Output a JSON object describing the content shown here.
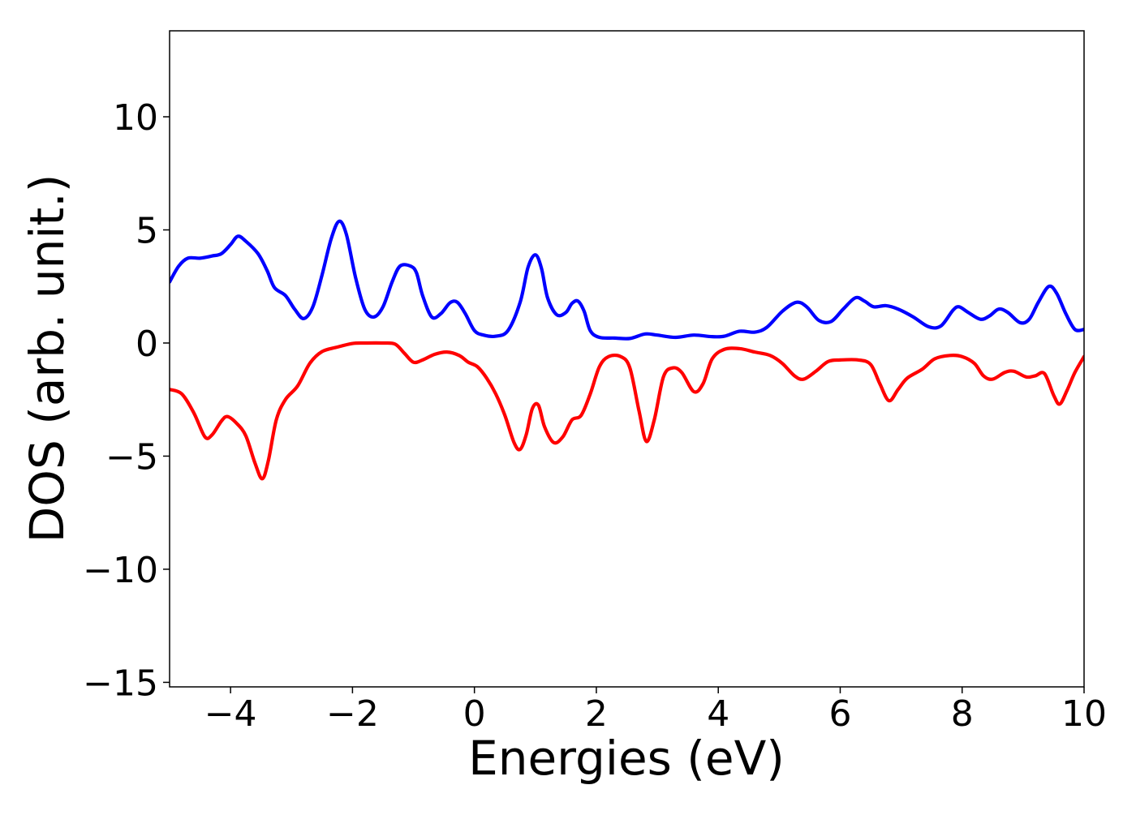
{
  "chart_data": {
    "type": "line",
    "title": "",
    "xlabel": "Energies (eV)",
    "ylabel": "DOS (arb. unit.)",
    "xlim": [
      -5,
      10
    ],
    "ylim": [
      -15.2,
      13.8
    ],
    "xticks": [
      -4,
      -2,
      0,
      2,
      4,
      6,
      8,
      10
    ],
    "xtick_labels": [
      "−4",
      "−2",
      "0",
      "2",
      "4",
      "6",
      "8",
      "10"
    ],
    "yticks": [
      10,
      5,
      0,
      -5,
      -10,
      -15
    ],
    "ytick_labels": [
      "10",
      "5",
      "0",
      "−5",
      "−10",
      "−15"
    ],
    "grid": false,
    "legend": "none",
    "series": [
      {
        "color": "#0000ff",
        "points": [
          [
            -5.0,
            2.7
          ],
          [
            -4.85,
            3.4
          ],
          [
            -4.7,
            3.75
          ],
          [
            -4.5,
            3.75
          ],
          [
            -4.3,
            3.85
          ],
          [
            -4.15,
            3.95
          ],
          [
            -4.0,
            4.35
          ],
          [
            -3.88,
            4.72
          ],
          [
            -3.75,
            4.5
          ],
          [
            -3.55,
            3.95
          ],
          [
            -3.4,
            3.2
          ],
          [
            -3.28,
            2.45
          ],
          [
            -3.1,
            2.1
          ],
          [
            -2.95,
            1.5
          ],
          [
            -2.8,
            1.08
          ],
          [
            -2.65,
            1.6
          ],
          [
            -2.5,
            3.0
          ],
          [
            -2.35,
            4.6
          ],
          [
            -2.22,
            5.38
          ],
          [
            -2.1,
            4.8
          ],
          [
            -1.95,
            2.9
          ],
          [
            -1.8,
            1.5
          ],
          [
            -1.65,
            1.15
          ],
          [
            -1.5,
            1.6
          ],
          [
            -1.35,
            2.7
          ],
          [
            -1.22,
            3.4
          ],
          [
            -1.05,
            3.4
          ],
          [
            -0.95,
            3.1
          ],
          [
            -0.85,
            2.1
          ],
          [
            -0.7,
            1.15
          ],
          [
            -0.55,
            1.3
          ],
          [
            -0.4,
            1.78
          ],
          [
            -0.28,
            1.8
          ],
          [
            -0.15,
            1.3
          ],
          [
            0.0,
            0.55
          ],
          [
            0.15,
            0.35
          ],
          [
            0.35,
            0.3
          ],
          [
            0.55,
            0.55
          ],
          [
            0.75,
            1.8
          ],
          [
            0.88,
            3.35
          ],
          [
            1.0,
            3.9
          ],
          [
            1.1,
            3.3
          ],
          [
            1.2,
            2.0
          ],
          [
            1.35,
            1.25
          ],
          [
            1.5,
            1.35
          ],
          [
            1.6,
            1.75
          ],
          [
            1.7,
            1.85
          ],
          [
            1.8,
            1.4
          ],
          [
            1.9,
            0.55
          ],
          [
            2.05,
            0.25
          ],
          [
            2.3,
            0.22
          ],
          [
            2.55,
            0.2
          ],
          [
            2.8,
            0.4
          ],
          [
            3.0,
            0.35
          ],
          [
            3.3,
            0.25
          ],
          [
            3.6,
            0.35
          ],
          [
            3.9,
            0.28
          ],
          [
            4.1,
            0.3
          ],
          [
            4.35,
            0.52
          ],
          [
            4.6,
            0.48
          ],
          [
            4.8,
            0.7
          ],
          [
            5.05,
            1.4
          ],
          [
            5.28,
            1.8
          ],
          [
            5.45,
            1.6
          ],
          [
            5.65,
            1.0
          ],
          [
            5.85,
            0.95
          ],
          [
            6.05,
            1.5
          ],
          [
            6.25,
            2.0
          ],
          [
            6.4,
            1.85
          ],
          [
            6.55,
            1.6
          ],
          [
            6.75,
            1.65
          ],
          [
            6.95,
            1.5
          ],
          [
            7.2,
            1.15
          ],
          [
            7.45,
            0.72
          ],
          [
            7.65,
            0.75
          ],
          [
            7.85,
            1.45
          ],
          [
            7.95,
            1.6
          ],
          [
            8.1,
            1.35
          ],
          [
            8.3,
            1.05
          ],
          [
            8.45,
            1.2
          ],
          [
            8.6,
            1.5
          ],
          [
            8.75,
            1.35
          ],
          [
            8.95,
            0.9
          ],
          [
            9.1,
            1.05
          ],
          [
            9.25,
            1.8
          ],
          [
            9.42,
            2.5
          ],
          [
            9.55,
            2.2
          ],
          [
            9.7,
            1.3
          ],
          [
            9.85,
            0.6
          ],
          [
            10.0,
            0.6
          ]
        ]
      },
      {
        "color": "#ff0000",
        "points": [
          [
            -5.0,
            -2.05
          ],
          [
            -4.8,
            -2.25
          ],
          [
            -4.6,
            -3.1
          ],
          [
            -4.42,
            -4.15
          ],
          [
            -4.3,
            -4.05
          ],
          [
            -4.15,
            -3.45
          ],
          [
            -4.05,
            -3.25
          ],
          [
            -3.9,
            -3.55
          ],
          [
            -3.75,
            -4.1
          ],
          [
            -3.6,
            -5.3
          ],
          [
            -3.48,
            -6.0
          ],
          [
            -3.38,
            -5.2
          ],
          [
            -3.25,
            -3.4
          ],
          [
            -3.1,
            -2.5
          ],
          [
            -2.9,
            -1.9
          ],
          [
            -2.7,
            -0.9
          ],
          [
            -2.5,
            -0.38
          ],
          [
            -2.25,
            -0.18
          ],
          [
            -2.0,
            -0.02
          ],
          [
            -1.8,
            0.0
          ],
          [
            -1.5,
            0.0
          ],
          [
            -1.3,
            -0.05
          ],
          [
            -1.15,
            -0.45
          ],
          [
            -1.0,
            -0.85
          ],
          [
            -0.85,
            -0.75
          ],
          [
            -0.65,
            -0.5
          ],
          [
            -0.45,
            -0.4
          ],
          [
            -0.25,
            -0.55
          ],
          [
            -0.1,
            -0.85
          ],
          [
            0.05,
            -1.05
          ],
          [
            0.2,
            -1.55
          ],
          [
            0.35,
            -2.25
          ],
          [
            0.5,
            -3.2
          ],
          [
            0.65,
            -4.4
          ],
          [
            0.75,
            -4.7
          ],
          [
            0.85,
            -4.05
          ],
          [
            0.95,
            -2.9
          ],
          [
            1.05,
            -2.75
          ],
          [
            1.15,
            -3.7
          ],
          [
            1.3,
            -4.4
          ],
          [
            1.45,
            -4.15
          ],
          [
            1.6,
            -3.4
          ],
          [
            1.75,
            -3.2
          ],
          [
            1.9,
            -2.25
          ],
          [
            2.05,
            -1.05
          ],
          [
            2.2,
            -0.6
          ],
          [
            2.4,
            -0.6
          ],
          [
            2.55,
            -1.1
          ],
          [
            2.7,
            -3.0
          ],
          [
            2.82,
            -4.35
          ],
          [
            2.95,
            -3.4
          ],
          [
            3.1,
            -1.5
          ],
          [
            3.25,
            -1.1
          ],
          [
            3.4,
            -1.3
          ],
          [
            3.6,
            -2.15
          ],
          [
            3.75,
            -1.8
          ],
          [
            3.9,
            -0.7
          ],
          [
            4.1,
            -0.28
          ],
          [
            4.35,
            -0.25
          ],
          [
            4.6,
            -0.4
          ],
          [
            4.85,
            -0.55
          ],
          [
            5.05,
            -0.9
          ],
          [
            5.25,
            -1.45
          ],
          [
            5.4,
            -1.6
          ],
          [
            5.6,
            -1.25
          ],
          [
            5.8,
            -0.82
          ],
          [
            6.0,
            -0.75
          ],
          [
            6.3,
            -0.75
          ],
          [
            6.5,
            -0.95
          ],
          [
            6.65,
            -1.8
          ],
          [
            6.8,
            -2.55
          ],
          [
            6.95,
            -2.05
          ],
          [
            7.1,
            -1.55
          ],
          [
            7.35,
            -1.15
          ],
          [
            7.55,
            -0.7
          ],
          [
            7.8,
            -0.55
          ],
          [
            8.0,
            -0.6
          ],
          [
            8.2,
            -0.9
          ],
          [
            8.35,
            -1.45
          ],
          [
            8.5,
            -1.6
          ],
          [
            8.7,
            -1.3
          ],
          [
            8.85,
            -1.25
          ],
          [
            9.05,
            -1.5
          ],
          [
            9.2,
            -1.45
          ],
          [
            9.35,
            -1.35
          ],
          [
            9.5,
            -2.3
          ],
          [
            9.6,
            -2.7
          ],
          [
            9.72,
            -2.1
          ],
          [
            9.85,
            -1.3
          ],
          [
            10.0,
            -0.6
          ]
        ]
      }
    ]
  }
}
